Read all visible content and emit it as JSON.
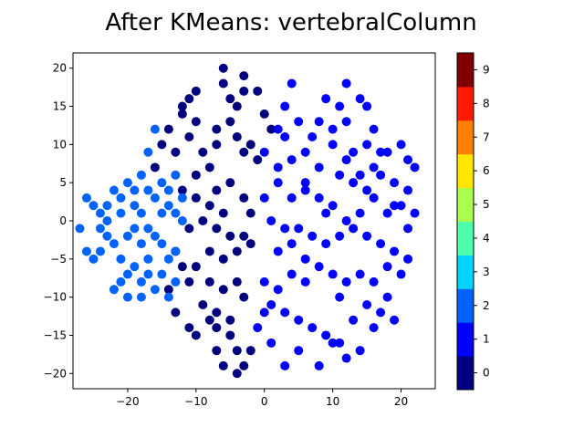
{
  "chart_data": {
    "type": "scatter",
    "title": "After KMeans: vertebralColumn",
    "xlabel": "",
    "ylabel": "",
    "xlim": [
      -28,
      25
    ],
    "ylim": [
      -22,
      22
    ],
    "x_ticks": [
      -20,
      -10,
      0,
      10,
      20
    ],
    "y_ticks": [
      -20,
      -15,
      -10,
      -5,
      0,
      5,
      10,
      15,
      20
    ],
    "grid": false,
    "colorbar": {
      "ticks": [
        "0",
        "1",
        "2",
        "3",
        "4",
        "5",
        "6",
        "7",
        "8",
        "9"
      ],
      "range": [
        -0.5,
        9.5
      ],
      "colormap": "jet",
      "colors": [
        "#00007f",
        "#0000ff",
        "#0063ff",
        "#00d4ff",
        "#4dffaa",
        "#aaff4d",
        "#ffe500",
        "#ff7f00",
        "#ff1a00",
        "#7f0000"
      ]
    },
    "series": [
      {
        "cluster": 0,
        "color": "#00007f",
        "points": [
          [
            -6,
            20
          ],
          [
            -3,
            19
          ],
          [
            -6,
            18
          ],
          [
            -3,
            17
          ],
          [
            -1,
            17
          ],
          [
            -5,
            16
          ],
          [
            -4,
            15
          ],
          [
            -10,
            17
          ],
          [
            -11,
            16
          ],
          [
            -12,
            14
          ],
          [
            -10,
            13
          ],
          [
            -7,
            12
          ],
          [
            -5,
            13
          ],
          [
            -4,
            11
          ],
          [
            -2,
            10
          ],
          [
            0,
            14
          ],
          [
            1,
            12
          ],
          [
            -1,
            8
          ],
          [
            -3,
            9
          ],
          [
            -7,
            10
          ],
          [
            -9,
            9
          ],
          [
            -8,
            7
          ],
          [
            -10,
            6
          ],
          [
            -12,
            4
          ],
          [
            -10,
            3
          ],
          [
            -8,
            2
          ],
          [
            -7,
            4
          ],
          [
            -5,
            5
          ],
          [
            -3,
            3
          ],
          [
            -2,
            1
          ],
          [
            -6,
            1
          ],
          [
            -9,
            0
          ],
          [
            -11,
            -1
          ],
          [
            -7,
            -1
          ],
          [
            -5,
            -2
          ],
          [
            -3,
            -2
          ],
          [
            -8,
            -4
          ],
          [
            -6,
            -5
          ],
          [
            -4,
            -4
          ],
          [
            -2,
            -3
          ],
          [
            -10,
            -6
          ],
          [
            -12,
            -6
          ],
          [
            -8,
            -8
          ],
          [
            -6,
            -9
          ],
          [
            -4,
            -8
          ],
          [
            -3,
            -10
          ],
          [
            -9,
            -11
          ],
          [
            -7,
            -12
          ],
          [
            -5,
            -13
          ],
          [
            -11,
            -14
          ],
          [
            -10,
            -15
          ],
          [
            -7,
            -14
          ],
          [
            -5,
            -15
          ],
          [
            -7,
            -17
          ],
          [
            -4,
            -17
          ],
          [
            -6,
            -19
          ],
          [
            -3,
            -19
          ],
          [
            -2,
            -17
          ],
          [
            -4,
            -20
          ],
          [
            -13,
            -12
          ],
          [
            -14,
            -9
          ],
          [
            -13,
            -4
          ],
          [
            -11,
            -8
          ],
          [
            -8,
            -13
          ],
          [
            -12,
            15
          ],
          [
            -14,
            12
          ],
          [
            -15,
            10
          ],
          [
            -16,
            7
          ],
          [
            -13,
            9
          ],
          [
            -11,
            11
          ]
        ]
      },
      {
        "cluster": 1,
        "color": "#0000ff",
        "points": [
          [
            4,
            18
          ],
          [
            9,
            16
          ],
          [
            12,
            18
          ],
          [
            14,
            16
          ],
          [
            11,
            15
          ],
          [
            8,
            13
          ],
          [
            12,
            13
          ],
          [
            15,
            15
          ],
          [
            16,
            12
          ],
          [
            20,
            10
          ],
          [
            18,
            9
          ],
          [
            21,
            8
          ],
          [
            22,
            7
          ],
          [
            16,
            7
          ],
          [
            14,
            6
          ],
          [
            12,
            8
          ],
          [
            10,
            10
          ],
          [
            7,
            11
          ],
          [
            5,
            13
          ],
          [
            3,
            15
          ],
          [
            2,
            12
          ],
          [
            0,
            9
          ],
          [
            2,
            7
          ],
          [
            4,
            8
          ],
          [
            6,
            9
          ],
          [
            8,
            7
          ],
          [
            11,
            6
          ],
          [
            13,
            5
          ],
          [
            15,
            4
          ],
          [
            17,
            6
          ],
          [
            19,
            5
          ],
          [
            21,
            4
          ],
          [
            20,
            2
          ],
          [
            18,
            1
          ],
          [
            16,
            3
          ],
          [
            14,
            1
          ],
          [
            12,
            0
          ],
          [
            10,
            2
          ],
          [
            8,
            3
          ],
          [
            6,
            4
          ],
          [
            4,
            3
          ],
          [
            2,
            5
          ],
          [
            0,
            3
          ],
          [
            1,
            0
          ],
          [
            3,
            -1
          ],
          [
            5,
            -1
          ],
          [
            7,
            -2
          ],
          [
            9,
            -3
          ],
          [
            11,
            -2
          ],
          [
            13,
            -1
          ],
          [
            15,
            -2
          ],
          [
            17,
            -3
          ],
          [
            19,
            -4
          ],
          [
            21,
            -5
          ],
          [
            20,
            -7
          ],
          [
            18,
            -6
          ],
          [
            16,
            -8
          ],
          [
            14,
            -7
          ],
          [
            12,
            -8
          ],
          [
            10,
            -7
          ],
          [
            8,
            -6
          ],
          [
            6,
            -8
          ],
          [
            4,
            -7
          ],
          [
            2,
            -9
          ],
          [
            0,
            -8
          ],
          [
            1,
            -11
          ],
          [
            3,
            -12
          ],
          [
            5,
            -13
          ],
          [
            7,
            -14
          ],
          [
            9,
            -15
          ],
          [
            11,
            -16
          ],
          [
            13,
            -13
          ],
          [
            15,
            -11
          ],
          [
            17,
            -12
          ],
          [
            19,
            -13
          ],
          [
            18,
            -10
          ],
          [
            16,
            -14
          ],
          [
            14,
            -17
          ],
          [
            12,
            -18
          ],
          [
            10,
            -16
          ],
          [
            8,
            -19
          ],
          [
            5,
            -17
          ],
          [
            3,
            -19
          ],
          [
            1,
            -16
          ],
          [
            -1,
            -14
          ],
          [
            0,
            -12
          ],
          [
            2,
            -4
          ],
          [
            4,
            -3
          ],
          [
            6,
            -5
          ],
          [
            9,
            1
          ],
          [
            22,
            1
          ],
          [
            21,
            -1
          ],
          [
            10,
            12
          ],
          [
            3,
            11
          ],
          [
            6,
            5
          ],
          [
            13,
            9
          ],
          [
            17,
            9
          ],
          [
            19,
            2
          ],
          [
            15,
            10
          ],
          [
            11,
            -10
          ]
        ]
      },
      {
        "cluster": 2,
        "color": "#0063ff",
        "points": [
          [
            -26,
            3
          ],
          [
            -25,
            2
          ],
          [
            -24,
            1
          ],
          [
            -23,
            0
          ],
          [
            -22,
            4
          ],
          [
            -20,
            5
          ],
          [
            -19,
            2
          ],
          [
            -18,
            1
          ],
          [
            -17,
            4
          ],
          [
            -16,
            3
          ],
          [
            -15,
            5
          ],
          [
            -14,
            2
          ],
          [
            -13,
            1
          ],
          [
            -12,
            0
          ],
          [
            -17,
            -1
          ],
          [
            -18,
            -3
          ],
          [
            -20,
            -2
          ],
          [
            -22,
            -3
          ],
          [
            -24,
            -4
          ],
          [
            -26,
            -4
          ],
          [
            -21,
            -5
          ],
          [
            -19,
            -6
          ],
          [
            -17,
            -5
          ],
          [
            -15,
            -7
          ],
          [
            -16,
            -9
          ],
          [
            -18,
            -10
          ],
          [
            -20,
            -10
          ],
          [
            -21,
            -8
          ],
          [
            -14,
            -10
          ],
          [
            -13,
            -8
          ],
          [
            -15,
            -3
          ],
          [
            -13,
            -4
          ],
          [
            -16,
            12
          ],
          [
            -17,
            9
          ],
          [
            -18,
            6
          ],
          [
            -23,
            2
          ],
          [
            -27,
            -1
          ],
          [
            -21,
            1
          ],
          [
            -19,
            -1
          ],
          [
            -14,
            4
          ],
          [
            -12,
            3
          ],
          [
            -16,
            -2
          ],
          [
            -22,
            -9
          ],
          [
            -23,
            -2
          ],
          [
            -25,
            -5
          ],
          [
            -20,
            -7
          ],
          [
            -18,
            -8
          ],
          [
            -14,
            -5
          ],
          [
            -13,
            6
          ],
          [
            -15,
            1
          ],
          [
            -21,
            3
          ],
          [
            -24,
            -1
          ],
          [
            -17,
            -7
          ],
          [
            -19,
            4
          ]
        ]
      }
    ]
  }
}
